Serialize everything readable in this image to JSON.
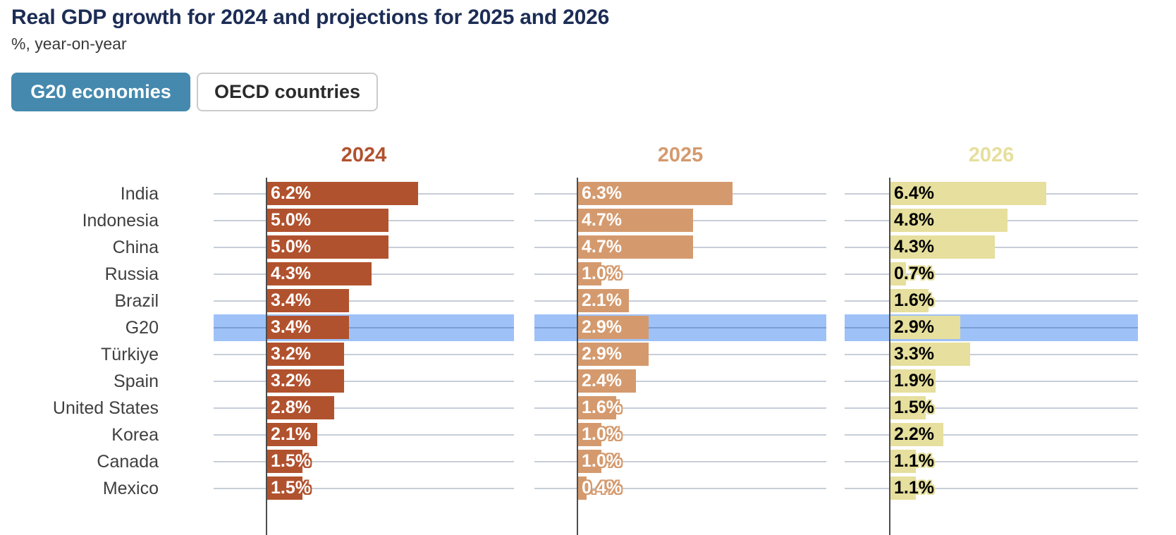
{
  "header": {
    "title": "Real GDP growth for 2024 and projections for 2025 and 2026",
    "subtitle": "%, year-on-year"
  },
  "toggle": {
    "options": [
      {
        "label": "G20 economies",
        "active": true
      },
      {
        "label": "OECD countries",
        "active": false
      }
    ],
    "active_bg": "#4589ae"
  },
  "chart_data": {
    "type": "bar",
    "orientation": "horizontal",
    "title": "Real GDP growth for 2024 and projections for 2025 and 2026",
    "subtitle": "%, year-on-year",
    "categories": [
      "India",
      "Indonesia",
      "China",
      "Russia",
      "Brazil",
      "G20",
      "Türkiye",
      "Spain",
      "United States",
      "Korea",
      "Canada",
      "Mexico"
    ],
    "highlighted_category": "G20",
    "highlight_color": "#9ec2f8",
    "series": [
      {
        "name": "2024",
        "color": "#b1522e",
        "value_text_color": "#ffffff",
        "values": [
          6.2,
          5.0,
          5.0,
          4.3,
          3.4,
          3.4,
          3.2,
          3.2,
          2.8,
          2.1,
          1.5,
          1.5
        ]
      },
      {
        "name": "2025",
        "color": "#d49a6e",
        "value_text_color": "#ffffff",
        "values": [
          6.3,
          4.7,
          4.7,
          1.0,
          2.1,
          2.9,
          2.9,
          2.4,
          1.6,
          1.0,
          1.0,
          0.4
        ]
      },
      {
        "name": "2026",
        "color": "#e6df9d",
        "value_text_color": "#000000",
        "values": [
          6.4,
          4.8,
          4.3,
          0.7,
          1.6,
          2.9,
          3.3,
          1.9,
          1.5,
          2.2,
          1.1,
          1.1
        ]
      }
    ],
    "value_suffix": "%",
    "xlim": [
      0,
      10
    ],
    "grid": true,
    "legend": "none",
    "gridline_color": "#c7ced8",
    "axis_color": "#4d4d4d"
  }
}
